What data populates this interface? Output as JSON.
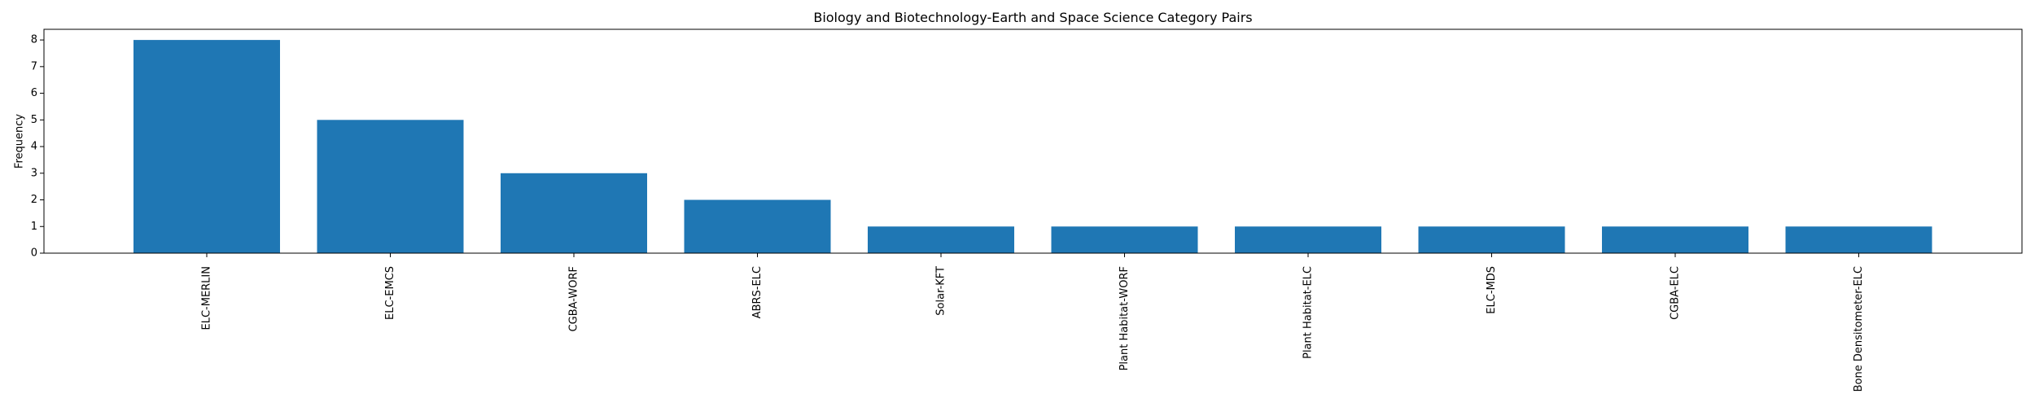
{
  "chart_data": {
    "type": "bar",
    "title": "Biology and Biotechnology-Earth and Space Science Category Pairs",
    "xlabel": "",
    "ylabel": "Frequency",
    "categories": [
      "ELC-MERLIN",
      "ELC-EMCS",
      "CGBA-WORF",
      "ABRS-ELC",
      "Solar-KFT",
      "Plant Habitat-WORF",
      "Plant Habitat-ELC",
      "ELC-MDS",
      "CGBA-ELC",
      "Bone Densitometer-ELC"
    ],
    "values": [
      8,
      5,
      3,
      2,
      1,
      1,
      1,
      1,
      1,
      1
    ],
    "ylim": [
      0,
      8.4
    ],
    "yticks": [
      0,
      1,
      2,
      3,
      4,
      5,
      6,
      7,
      8
    ],
    "grid": false,
    "legend": "none",
    "bar_color": "#1f77b4",
    "axis_color": "#000000"
  }
}
